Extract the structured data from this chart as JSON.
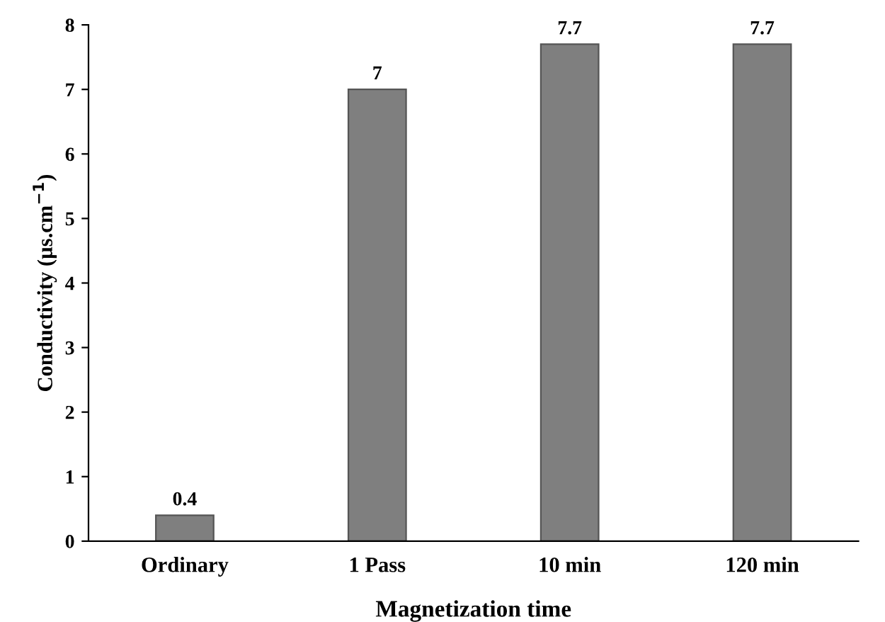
{
  "chart_data": {
    "type": "bar",
    "xlabel": "Magnetization time",
    "ylabel": "Conductivity (µs.cm$^{−1}$)",
    "categories": [
      "Ordinary",
      "1 Pass",
      "10 min",
      "120 min"
    ],
    "values": [
      0.4,
      7,
      7.7,
      7.7
    ],
    "color": "#7f7f7f",
    "ylim": [
      0,
      8
    ],
    "yticks": [
      0,
      1,
      2,
      3,
      4,
      5,
      6,
      7,
      8
    ],
    "grid": false,
    "data_labels": true
  }
}
